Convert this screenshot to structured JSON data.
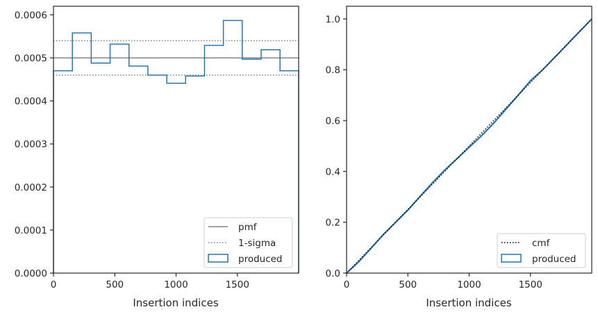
{
  "chart_data": [
    {
      "type": "step",
      "xlabel": "Insertion indices",
      "ylabel": "",
      "xlim": [
        0,
        2000
      ],
      "ylim": [
        0,
        0.00062
      ],
      "xticks": [
        0,
        500,
        1000,
        1500
      ],
      "xtick_labels": [
        "0",
        "500",
        "1000",
        "1500"
      ],
      "yticks": [
        0,
        0.0001,
        0.0002,
        0.0003,
        0.0004,
        0.0005,
        0.0006
      ],
      "ytick_labels": [
        "0.0000",
        "0.0001",
        "0.0002",
        "0.0003",
        "0.0004",
        "0.0005",
        "0.0006"
      ],
      "hlines": [
        {
          "name": "pmf",
          "y": 0.0005,
          "style": "solid",
          "color": "#808080"
        },
        {
          "name": "1-sigma",
          "y": 0.00054,
          "style": "dotted",
          "color": "#808080"
        },
        {
          "name": "1-sigma",
          "y": 0.00046,
          "style": "dotted",
          "color": "#808080"
        }
      ],
      "histogram": {
        "name": "produced",
        "color": "#1f77b4",
        "bin_edges": [
          0,
          154,
          308,
          462,
          616,
          770,
          924,
          1078,
          1232,
          1386,
          1540,
          1694,
          1848,
          2000
        ],
        "values": [
          0.00047,
          0.000558,
          0.000488,
          0.000532,
          0.000481,
          0.00046,
          0.000441,
          0.000458,
          0.000529,
          0.000587,
          0.000497,
          0.000519,
          0.00047
        ]
      },
      "legend": {
        "position": "lower-right",
        "entries": [
          {
            "label": "pmf",
            "style": "solid",
            "color": "#808080"
          },
          {
            "label": "1-sigma",
            "style": "dotted",
            "color": "#808080"
          },
          {
            "label": "produced",
            "style": "patch",
            "color": "#1f77b4"
          }
        ]
      },
      "grid": false
    },
    {
      "type": "line",
      "xlabel": "Insertion indices",
      "ylabel": "",
      "xlim": [
        0,
        2000
      ],
      "ylim": [
        0,
        1.05
      ],
      "xticks": [
        0,
        500,
        1000,
        1500
      ],
      "xtick_labels": [
        "0",
        "500",
        "1000",
        "1500"
      ],
      "yticks": [
        0,
        0.2,
        0.4,
        0.6,
        0.8,
        1.0
      ],
      "ytick_labels": [
        "0.0",
        "0.2",
        "0.4",
        "0.6",
        "0.8",
        "1.0"
      ],
      "series": [
        {
          "name": "cmf",
          "style": "dotted",
          "color": "#000000",
          "x": [
            0,
            2000
          ],
          "y": [
            0,
            1.0
          ]
        },
        {
          "name": "produced",
          "style": "step",
          "color": "#1f77b4",
          "x": [
            0,
            100,
            200,
            300,
            400,
            500,
            600,
            700,
            800,
            900,
            1000,
            1100,
            1200,
            1300,
            1400,
            1500,
            1600,
            1700,
            1800,
            1900,
            2000
          ],
          "y": [
            0,
            0.045,
            0.098,
            0.152,
            0.2,
            0.248,
            0.302,
            0.355,
            0.405,
            0.45,
            0.495,
            0.54,
            0.59,
            0.645,
            0.7,
            0.757,
            0.8,
            0.85,
            0.9,
            0.95,
            1.0
          ]
        }
      ],
      "legend": {
        "position": "lower-right",
        "entries": [
          {
            "label": "cmf",
            "style": "dotted",
            "color": "#000000"
          },
          {
            "label": "produced",
            "style": "patch",
            "color": "#1f77b4"
          }
        ]
      },
      "grid": false
    }
  ]
}
